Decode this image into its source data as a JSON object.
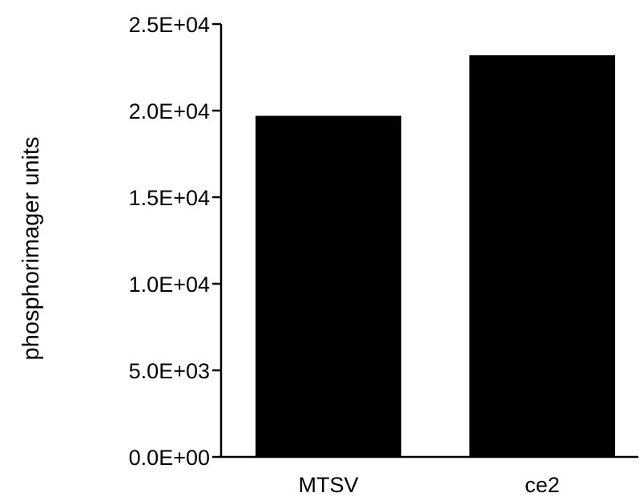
{
  "chart_data": {
    "type": "bar",
    "categories": [
      "MTSV",
      "ce2"
    ],
    "values": [
      19700,
      23200
    ],
    "title": "",
    "xlabel": "",
    "ylabel": "phosphorimager units",
    "ylim": [
      0,
      25000
    ],
    "yticks": [
      0,
      5000,
      10000,
      15000,
      20000,
      25000
    ],
    "ytick_labels": [
      "0.0E+00",
      "5.0E+03",
      "1.0E+04",
      "1.5E+04",
      "2.0E+04",
      "2.5E+04"
    ],
    "grid": false,
    "legend": "none",
    "bar_color": "#000000"
  }
}
